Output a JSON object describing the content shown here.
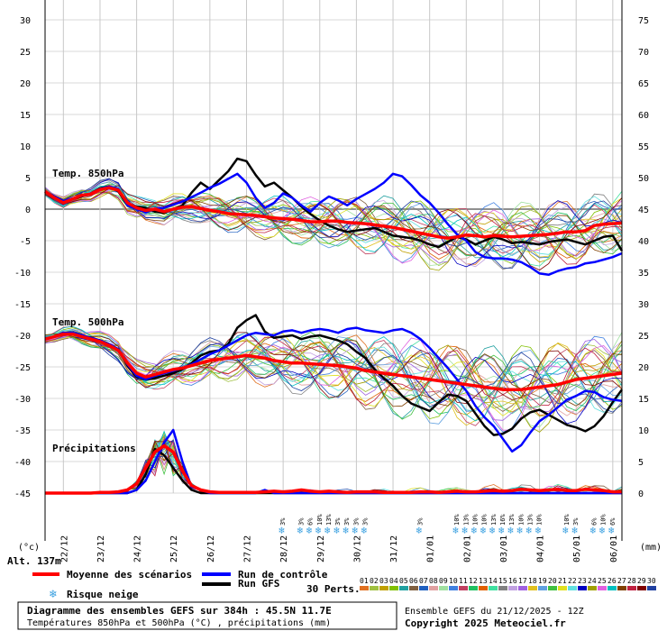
{
  "chart_data": {
    "type": "line",
    "y_left_ticks": [
      30,
      25,
      20,
      15,
      10,
      5,
      0,
      -5,
      -10,
      -15,
      -20,
      -25,
      -30,
      -35,
      -40,
      -45
    ],
    "y_right_ticks": [
      75,
      70,
      65,
      60,
      55,
      50,
      45,
      40,
      35,
      30,
      25,
      20,
      15,
      10,
      5,
      0
    ],
    "y_left_unit": "(°c)",
    "y_right_unit": "(mm)",
    "x_ticks": [
      "22/12",
      "23/12",
      "24/12",
      "25/12",
      "26/12",
      "27/12",
      "28/12",
      "29/12",
      "30/12",
      "31/12",
      "01/01",
      "02/01",
      "03/01",
      "04/01",
      "05/01",
      "06/01"
    ],
    "panel_labels": {
      "t850": "Temp. 850hPa",
      "t500": "Temp. 500hPa",
      "precip": "Précipitations"
    },
    "altitude": "Alt. 137m",
    "snow_risk": [
      {
        "step": 26,
        "pct": "3%"
      },
      {
        "step": 28,
        "pct": "3%"
      },
      {
        "step": 29,
        "pct": "6%"
      },
      {
        "step": 30,
        "pct": "10%"
      },
      {
        "step": 31,
        "pct": "13%"
      },
      {
        "step": 32,
        "pct": "3%"
      },
      {
        "step": 33,
        "pct": "3%"
      },
      {
        "step": 34,
        "pct": "3%"
      },
      {
        "step": 35,
        "pct": "3%"
      },
      {
        "step": 41,
        "pct": "3%"
      },
      {
        "step": 45,
        "pct": "10%"
      },
      {
        "step": 46,
        "pct": "13%"
      },
      {
        "step": 47,
        "pct": "10%"
      },
      {
        "step": 48,
        "pct": "10%"
      },
      {
        "step": 49,
        "pct": "13%"
      },
      {
        "step": 50,
        "pct": "16%"
      },
      {
        "step": 51,
        "pct": "13%"
      },
      {
        "step": 52,
        "pct": "10%"
      },
      {
        "step": 53,
        "pct": "13%"
      },
      {
        "step": 54,
        "pct": "10%"
      },
      {
        "step": 57,
        "pct": "10%"
      },
      {
        "step": 58,
        "pct": "3%"
      },
      {
        "step": 60,
        "pct": "6%"
      },
      {
        "step": 61,
        "pct": "10%"
      },
      {
        "step": 62,
        "pct": "6%"
      }
    ],
    "series": [
      {
        "role": "mean_t850",
        "color": "#ff0000",
        "values": [
          2.8,
          1.8,
          1.0,
          1.6,
          2.2,
          2.4,
          3.1,
          3.4,
          3.0,
          1.0,
          0.2,
          -0.2,
          0.0,
          -0.4,
          0.0,
          0.3,
          0.4,
          0.1,
          -0.2,
          -0.4,
          -0.7,
          -0.8,
          -0.9,
          -1.0,
          -1.2,
          -1.4,
          -1.5,
          -1.6,
          -1.8,
          -2.0,
          -2.0,
          -1.9,
          -1.9,
          -2.1,
          -2.2,
          -2.3,
          -2.5,
          -2.7,
          -2.9,
          -3.2,
          -3.5,
          -3.8,
          -4.1,
          -4.4,
          -4.6,
          -4.4,
          -4.1,
          -4.2,
          -4.4,
          -4.2,
          -4.3,
          -4.4,
          -4.3,
          -4.2,
          -4.1,
          -4.0,
          -3.8,
          -3.6,
          -3.6,
          -3.4,
          -2.6,
          -2.4,
          -2.3,
          -2.2
        ]
      },
      {
        "role": "control_t850",
        "color": "#0000ff",
        "values": [
          2.8,
          2.0,
          1.3,
          1.7,
          2.1,
          2.5,
          3.2,
          3.6,
          3.2,
          0.6,
          0.0,
          -0.5,
          0.0,
          0.2,
          0.7,
          1.2,
          1.9,
          2.6,
          3.4,
          4.0,
          4.8,
          5.6,
          4.2,
          1.8,
          0.2,
          1.0,
          2.5,
          1.8,
          0.6,
          -0.4,
          1.0,
          2.0,
          1.4,
          0.6,
          1.6,
          2.4,
          3.2,
          4.2,
          5.6,
          5.2,
          3.8,
          2.2,
          1.0,
          -0.6,
          -2.4,
          -4.0,
          -5.0,
          -6.8,
          -7.6,
          -7.8,
          -7.8,
          -8.0,
          -8.4,
          -9.2,
          -10.2,
          -10.4,
          -9.8,
          -9.4,
          -9.2,
          -8.6,
          -8.4,
          -8.0,
          -7.6,
          -7.0
        ]
      },
      {
        "role": "gfs_t850",
        "color": "#000000",
        "values": [
          2.8,
          2.0,
          1.2,
          1.6,
          2.0,
          2.5,
          3.3,
          3.6,
          2.8,
          0.6,
          0.4,
          0.2,
          -0.4,
          -0.6,
          0.0,
          0.6,
          2.6,
          4.2,
          3.2,
          4.6,
          6.0,
          8.0,
          7.6,
          5.4,
          3.6,
          4.2,
          3.0,
          1.8,
          0.4,
          -0.8,
          -1.8,
          -2.6,
          -3.2,
          -3.6,
          -3.4,
          -3.2,
          -3.0,
          -3.6,
          -4.2,
          -4.4,
          -4.6,
          -5.0,
          -5.6,
          -6.0,
          -5.2,
          -4.4,
          -4.8,
          -5.6,
          -5.0,
          -4.4,
          -4.8,
          -5.4,
          -5.2,
          -5.4,
          -5.6,
          -5.2,
          -5.0,
          -4.8,
          -5.2,
          -5.6,
          -5.0,
          -4.4,
          -4.2,
          -6.6
        ]
      },
      {
        "role": "mean_t500",
        "color": "#ff0000",
        "values": [
          -20.6,
          -20.2,
          -19.8,
          -19.8,
          -20.2,
          -20.6,
          -21.0,
          -21.6,
          -22.4,
          -24.4,
          -26.0,
          -26.6,
          -26.2,
          -25.8,
          -25.4,
          -25.2,
          -24.8,
          -24.4,
          -24.0,
          -23.8,
          -23.6,
          -23.4,
          -23.2,
          -23.4,
          -23.6,
          -24.0,
          -24.2,
          -24.4,
          -24.4,
          -24.5,
          -24.6,
          -24.7,
          -24.8,
          -25.0,
          -25.2,
          -25.6,
          -25.8,
          -26.0,
          -26.2,
          -26.4,
          -26.6,
          -26.8,
          -27.0,
          -27.2,
          -27.4,
          -27.6,
          -27.8,
          -28.0,
          -28.2,
          -28.4,
          -28.6,
          -28.6,
          -28.6,
          -28.4,
          -28.2,
          -28.0,
          -27.8,
          -27.4,
          -27.0,
          -26.8,
          -26.6,
          -26.4,
          -26.2,
          -26.0
        ]
      },
      {
        "role": "control_t500",
        "color": "#0000ff",
        "values": [
          -20.6,
          -20.2,
          -19.6,
          -19.6,
          -20.0,
          -20.4,
          -20.8,
          -21.4,
          -22.2,
          -24.6,
          -26.4,
          -27.0,
          -26.4,
          -26.0,
          -25.6,
          -25.2,
          -24.6,
          -23.8,
          -23.0,
          -22.4,
          -21.6,
          -20.8,
          -20.0,
          -19.6,
          -19.8,
          -20.0,
          -19.4,
          -19.2,
          -19.6,
          -19.2,
          -19.0,
          -19.2,
          -19.6,
          -19.0,
          -18.8,
          -19.2,
          -19.4,
          -19.6,
          -19.2,
          -19.0,
          -19.6,
          -20.6,
          -22.0,
          -23.6,
          -25.2,
          -27.0,
          -28.8,
          -31.2,
          -33.0,
          -34.4,
          -36.4,
          -38.4,
          -37.4,
          -35.4,
          -33.6,
          -32.6,
          -31.4,
          -30.2,
          -29.6,
          -28.8,
          -29.0,
          -29.8,
          -30.2,
          -30.4
        ]
      },
      {
        "role": "gfs_t500",
        "color": "#000000",
        "values": [
          -20.6,
          -20.2,
          -19.6,
          -19.6,
          -20.0,
          -20.4,
          -20.8,
          -21.4,
          -22.2,
          -24.8,
          -26.6,
          -27.0,
          -26.8,
          -26.4,
          -26.0,
          -25.4,
          -24.4,
          -23.2,
          -22.6,
          -22.4,
          -21.4,
          -18.8,
          -17.6,
          -16.8,
          -19.4,
          -20.4,
          -20.2,
          -20.0,
          -20.6,
          -20.2,
          -20.0,
          -20.4,
          -20.8,
          -21.4,
          -22.6,
          -23.6,
          -25.4,
          -26.8,
          -28.0,
          -29.6,
          -30.8,
          -31.4,
          -32.0,
          -30.6,
          -29.4,
          -29.6,
          -30.4,
          -32.4,
          -34.4,
          -35.8,
          -35.6,
          -34.8,
          -33.2,
          -32.2,
          -31.8,
          -32.6,
          -33.4,
          -34.2,
          -34.6,
          -35.2,
          -34.4,
          -32.8,
          -30.6,
          -28.6
        ]
      },
      {
        "role": "mean_precip",
        "color": "#ff0000",
        "values": [
          0,
          0,
          0,
          0,
          0,
          0,
          0.1,
          0.1,
          0.2,
          0.5,
          1.5,
          4.0,
          6.5,
          7.5,
          6.5,
          3.5,
          1.2,
          0.5,
          0.2,
          0.1,
          0.1,
          0.1,
          0.1,
          0.1,
          0.2,
          0.3,
          0.2,
          0.3,
          0.5,
          0.3,
          0.2,
          0.3,
          0.2,
          0.1,
          0.2,
          0.2,
          0.2,
          0.1,
          0.1,
          0.1,
          0.1,
          0.2,
          0.2,
          0.1,
          0.2,
          0.3,
          0.2,
          0.2,
          0.3,
          0.4,
          0.3,
          0.4,
          0.6,
          0.5,
          0.4,
          0.5,
          0.6,
          0.4,
          0.4,
          0.6,
          0.5,
          0.4,
          0.2,
          0.2
        ]
      },
      {
        "role": "control_precip",
        "color": "#0000ff",
        "values": [
          0,
          0,
          0,
          0,
          0,
          0,
          0,
          0,
          0,
          0,
          0.5,
          2,
          5,
          8,
          10,
          5,
          1,
          0.5,
          0,
          0,
          0,
          0,
          0,
          0,
          0.5,
          0,
          0,
          0,
          0,
          0,
          0,
          0,
          0,
          0,
          0,
          0,
          0,
          0,
          0,
          0,
          0,
          0,
          0,
          0,
          0,
          0,
          0,
          0,
          0,
          0,
          0,
          0,
          0,
          0,
          0,
          0,
          0,
          0,
          0,
          0,
          0,
          0,
          0,
          0
        ]
      },
      {
        "role": "gfs_precip",
        "color": "#000000",
        "values": [
          0,
          0,
          0,
          0,
          0,
          0,
          0,
          0,
          0,
          0,
          0.5,
          3,
          7,
          6,
          4,
          2,
          0.5,
          0,
          0,
          0,
          0,
          0,
          0,
          0,
          0,
          0,
          0,
          0,
          0,
          0,
          0,
          0,
          0,
          0,
          0,
          0,
          0,
          0,
          0,
          0,
          0,
          0,
          0,
          0,
          0,
          0,
          0,
          0,
          0,
          0,
          0,
          0,
          0,
          0,
          0,
          0,
          0,
          0,
          0,
          0,
          0,
          0,
          0,
          0
        ]
      }
    ],
    "legend": {
      "mean": "Moyenne des scénarios",
      "control": "Run de contrôle",
      "gfs": "Run GFS",
      "snow": "Risque neige",
      "perts": "30 Perts."
    },
    "pert_labels": [
      "01",
      "02",
      "03",
      "04",
      "05",
      "06",
      "07",
      "08",
      "09",
      "10",
      "11",
      "12",
      "13",
      "14",
      "15",
      "16",
      "17",
      "18",
      "19",
      "20",
      "21",
      "22",
      "23",
      "24",
      "25",
      "26",
      "27",
      "28",
      "29",
      "30"
    ],
    "pert_colors": [
      "#e07020",
      "#a0c040",
      "#c0a000",
      "#80c000",
      "#20a0a0",
      "#806040",
      "#2060c0",
      "#e0a0a0",
      "#a0e0a0",
      "#4080e0",
      "#c04060",
      "#20c060",
      "#e06000",
      "#40e0a0",
      "#808080",
      "#c0a0e0",
      "#a060e0",
      "#e0c020",
      "#60a0e0",
      "#40c040",
      "#e0e020",
      "#60e0e0",
      "#0000c0",
      "#a0a000",
      "#e060e0",
      "#00c0c0",
      "#804000",
      "#c02040",
      "#800000",
      "#2040a0"
    ],
    "info": {
      "title": "Diagramme des ensembles GEFS sur 384h : 45.5N 11.7E",
      "subtitle": "Températures 850hPa et 500hPa (°C) , précipitations (mm)",
      "ensemble": "Ensemble GEFS du 21/12/2025 - 12Z",
      "copyright": "Copyright 2025 Meteociel.fr"
    }
  }
}
